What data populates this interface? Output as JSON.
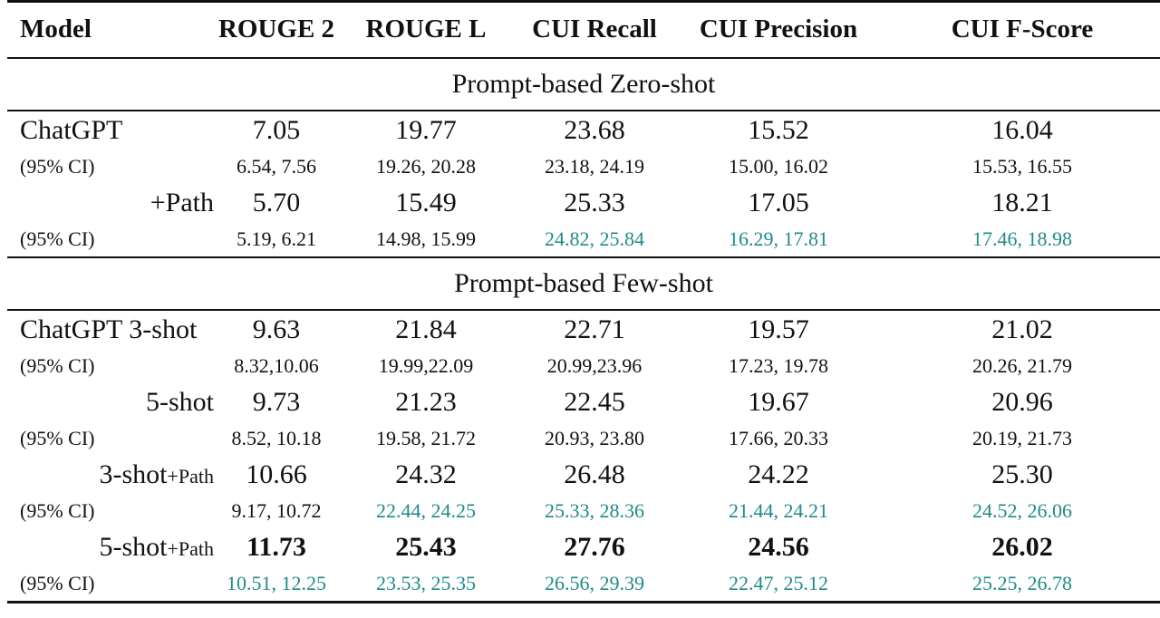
{
  "header": {
    "model": "Model",
    "rouge2": "ROUGE 2",
    "rougel": "ROUGE L",
    "cui_recall": "CUI Recall",
    "cui_precision": "CUI Precision",
    "cui_fscore": "CUI F-Score"
  },
  "colors": {
    "highlight": "#1e8a88",
    "text": "#111111"
  },
  "sections": {
    "zero_shot": "Prompt-based Zero-shot",
    "few_shot": "Prompt-based Few-shot"
  },
  "zero": {
    "chatgpt": {
      "label": "ChatGPT",
      "values": [
        "7.05",
        "19.77",
        "23.68",
        "15.52",
        "16.04"
      ],
      "ci_label": "(95% CI)",
      "ci": [
        "6.54, 7.56",
        "19.26, 20.28",
        "23.18, 24.19",
        "15.00, 16.02",
        "15.53, 16.55"
      ]
    },
    "path": {
      "label": "+Path",
      "values": [
        "5.70",
        "15.49",
        "25.33",
        "17.05",
        "18.21"
      ],
      "ci_label": "(95% CI)",
      "ci": [
        "5.19, 6.21",
        "14.98, 15.99",
        "24.82, 25.84",
        "16.29, 17.81",
        "17.46, 18.98"
      ]
    }
  },
  "few": {
    "shot3": {
      "label": "ChatGPT 3-shot",
      "values": [
        "9.63",
        "21.84",
        "22.71",
        "19.57",
        "21.02"
      ],
      "ci_label": "(95% CI)",
      "ci": [
        "8.32,10.06",
        "19.99,22.09",
        "20.99,23.96",
        "17.23, 19.78",
        "20.26, 21.79"
      ]
    },
    "shot5": {
      "label": "5-shot",
      "values": [
        "9.73",
        "21.23",
        "22.45",
        "19.67",
        "20.96"
      ],
      "ci_label": "(95% CI)",
      "ci": [
        "8.52, 10.18",
        "19.58, 21.72",
        "20.93, 23.80",
        "17.66, 20.33",
        "20.19, 21.73"
      ]
    },
    "shot3path": {
      "label_main": "3-shot",
      "label_suffix": "+Path",
      "values": [
        "10.66",
        "24.32",
        "26.48",
        "24.22",
        "25.30"
      ],
      "ci_label": "(95% CI)",
      "ci": [
        "9.17, 10.72",
        "22.44, 24.25",
        "25.33, 28.36",
        "21.44, 24.21",
        "24.52, 26.06"
      ]
    },
    "shot5path": {
      "label_main": "5-shot",
      "label_suffix": "+Path",
      "values": [
        "11.73",
        "25.43",
        "27.76",
        "24.56",
        "26.02"
      ],
      "ci_label": "(95% CI)",
      "ci": [
        "10.51, 12.25",
        "23.53, 25.35",
        "26.56, 29.39",
        "22.47, 25.12",
        "25.25, 26.78"
      ]
    }
  }
}
